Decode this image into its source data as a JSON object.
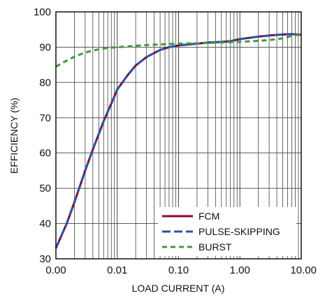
{
  "chart_data": {
    "type": "line",
    "xlabel": "LOAD CURRENT (A)",
    "ylabel": "EFFICIENCY (%)",
    "x_scale": "log",
    "xlim": [
      0.001,
      10
    ],
    "ylim": [
      30,
      100
    ],
    "x_ticks": [
      {
        "value": 0.001,
        "label": "0.00"
      },
      {
        "value": 0.01,
        "label": "0.01"
      },
      {
        "value": 0.1,
        "label": "0.10"
      },
      {
        "value": 1,
        "label": "1.00"
      },
      {
        "value": 10,
        "label": "10.00"
      }
    ],
    "y_ticks": [
      30,
      40,
      50,
      60,
      70,
      80,
      90,
      100
    ],
    "grid": true,
    "legend_position": "bottom-right",
    "series": [
      {
        "name": "FCM",
        "color": "#8b0a2a",
        "dash": "solid",
        "x": [
          0.001,
          0.0015,
          0.002,
          0.003,
          0.004,
          0.006,
          0.008,
          0.01,
          0.015,
          0.02,
          0.03,
          0.05,
          0.07,
          0.1,
          0.2,
          0.3,
          0.5,
          0.7,
          1,
          1.5,
          2,
          3,
          5,
          7,
          10
        ],
        "y": [
          33,
          40,
          46,
          55,
          61,
          69,
          74,
          78,
          82.2,
          84.8,
          87.2,
          89.2,
          90,
          90.5,
          91,
          91.3,
          91.5,
          91.7,
          92.3,
          92.7,
          93,
          93.3,
          93.6,
          93.7,
          93.5
        ]
      },
      {
        "name": "PULSE-SKIPPING",
        "color": "#2f4fa8",
        "dash": "long-dash",
        "x": [
          0.001,
          0.0015,
          0.002,
          0.003,
          0.004,
          0.006,
          0.008,
          0.01,
          0.015,
          0.02,
          0.03,
          0.05,
          0.07,
          0.1,
          0.2,
          0.3,
          0.5,
          0.7,
          1,
          1.5,
          2,
          3,
          5,
          7,
          10
        ],
        "y": [
          33,
          40,
          46,
          55,
          61,
          69,
          74,
          78,
          82.2,
          84.8,
          87.2,
          89.2,
          90,
          90.5,
          91,
          91.3,
          91.5,
          91.7,
          92.3,
          92.7,
          93,
          93.3,
          93.6,
          93.7,
          93.5
        ]
      },
      {
        "name": "BURST",
        "color": "#3e9a3e",
        "dash": "dash",
        "x": [
          0.001,
          0.0015,
          0.002,
          0.003,
          0.005,
          0.007,
          0.01,
          0.015,
          0.02,
          0.03,
          0.05,
          0.1,
          0.2,
          0.5,
          1,
          2,
          3,
          5,
          7,
          10
        ],
        "y": [
          84.5,
          86.2,
          87.3,
          88.5,
          89.4,
          89.8,
          90,
          90.2,
          90.4,
          90.6,
          90.8,
          91,
          91.1,
          91.3,
          91.5,
          91.8,
          92,
          92.5,
          93.2,
          93.6
        ]
      }
    ]
  }
}
